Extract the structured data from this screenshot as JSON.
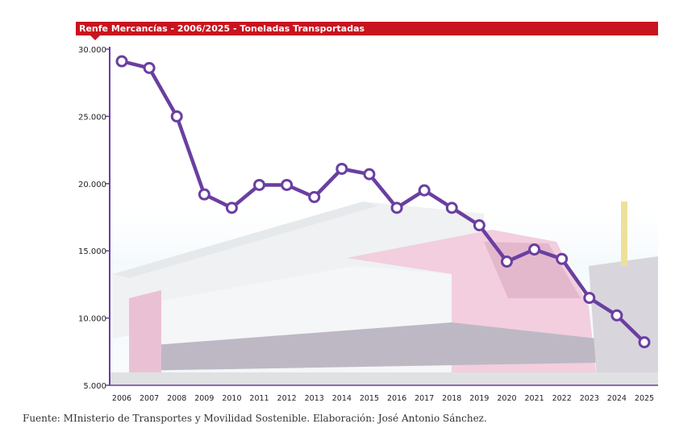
{
  "chart_data": {
    "type": "line",
    "title": "Renfe Mercancías - 2006/2025 - Toneladas Transportadas",
    "xlabel": "",
    "ylabel": "",
    "categories": [
      "2006",
      "2007",
      "2008",
      "2009",
      "2010",
      "2011",
      "2012",
      "2013",
      "2014",
      "2015",
      "2016",
      "2017",
      "2018",
      "2019",
      "2020",
      "2021",
      "2022",
      "2023",
      "2024",
      "2025"
    ],
    "series": [
      {
        "name": "",
        "values": [
          29100,
          28600,
          25000,
          19200,
          18200,
          19900,
          19900,
          19000,
          21100,
          20700,
          18200,
          19500,
          18200,
          16900,
          14200,
          15100,
          14400,
          11500,
          10200,
          8200
        ]
      }
    ],
    "ylim": [
      5000,
      30000
    ],
    "yticks": [
      {
        "value": 30000,
        "label": "30.000"
      },
      {
        "value": 25000,
        "label": "25.000"
      },
      {
        "value": 20000,
        "label": "20.000"
      },
      {
        "value": 15000,
        "label": "15.000"
      },
      {
        "value": 10000,
        "label": "10.000"
      },
      {
        "value": 5000,
        "label": "5.000"
      }
    ],
    "grid": false,
    "legend": "none",
    "colors": {
      "line": "#6a3fa0",
      "marker_fill": "#ffffff",
      "title_bar": "#c8141e",
      "axis": "#6a3fa0"
    },
    "background_image": "renfe-freight-locomotive-photo"
  },
  "source": "Fuente: MInisterio de Transportes y Movilidad Sostenible. Elaboración: José Antonio Sánchez."
}
